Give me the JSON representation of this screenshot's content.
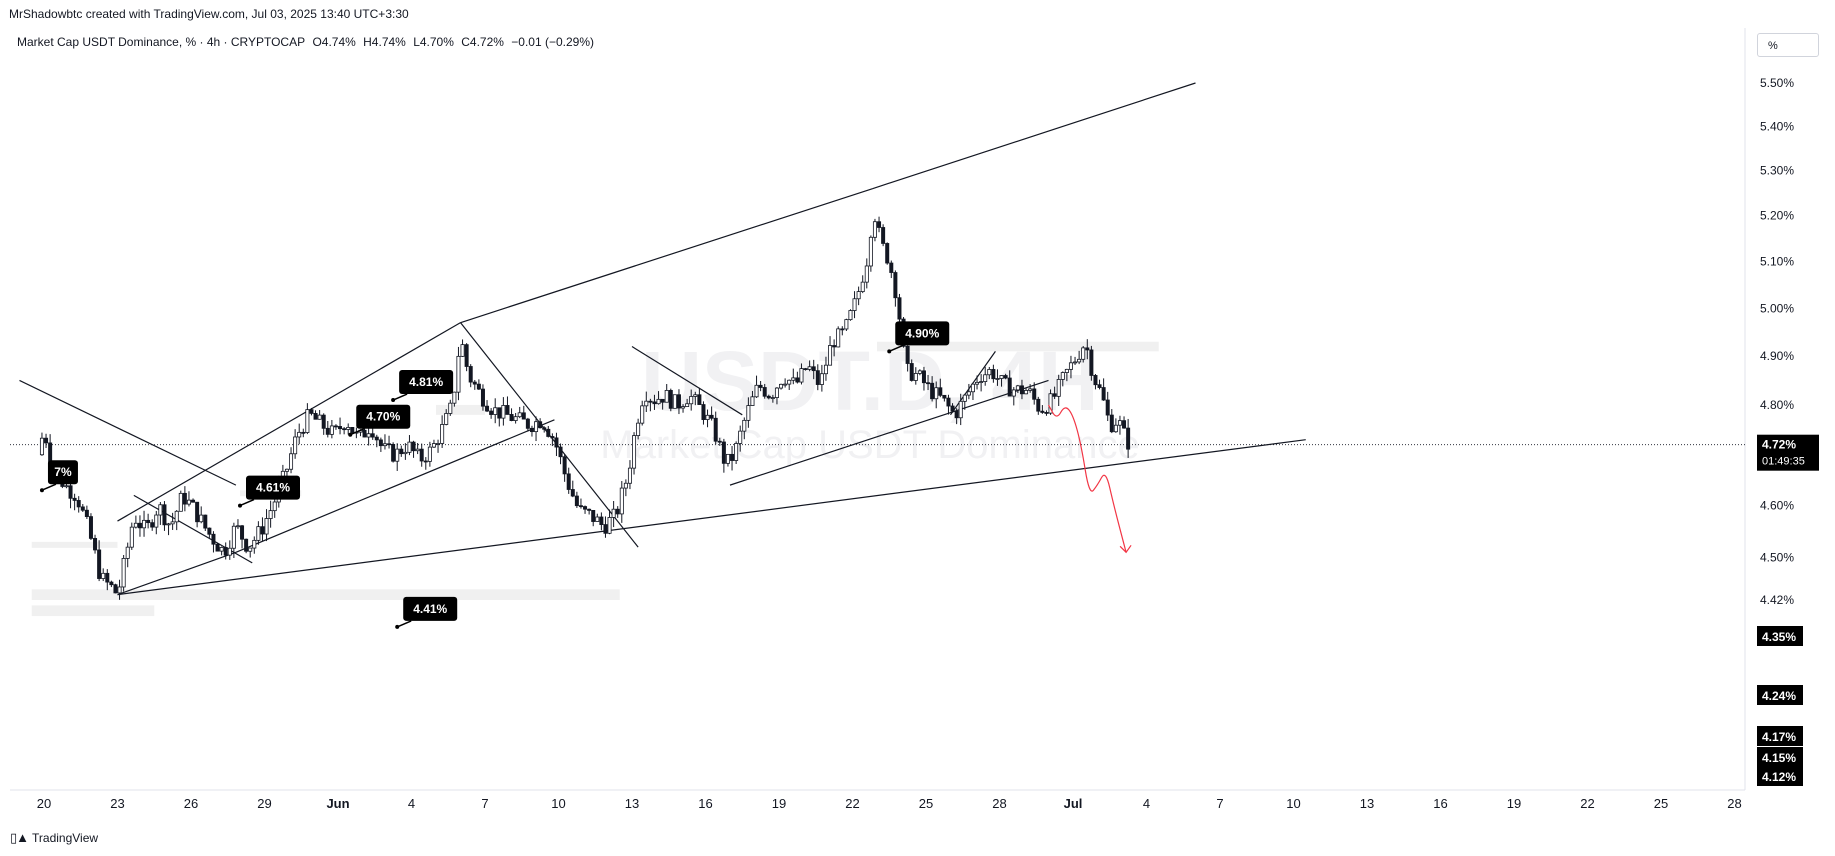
{
  "header": {
    "created_by": "MrShadowbtc created with TradingView.com, Jul 03, 2025 13:40 UTC+3:30"
  },
  "legend": {
    "symbol": "Market Cap USDT Dominance, % · 4h · CRYPTOCAP",
    "open": "O4.74%",
    "high": "H4.74%",
    "low": "L4.70%",
    "close": "C4.72%",
    "change": "−0.01 (−0.29%)"
  },
  "scale_unit": "%",
  "watermark": {
    "symbol": "USDT.D, 4H",
    "name": "Market Cap USDT Dominance"
  },
  "footer": {
    "brand": "TradingView"
  },
  "colors": {
    "candle": "#131722",
    "projection": "#f23645",
    "zone": "#f0f0f0",
    "badge_bg": "#000000"
  },
  "chart_data": {
    "type": "candlestick",
    "timeframe": "4h",
    "ylim": [
      4.1,
      5.55
    ],
    "y_scale": "log",
    "yticks": [
      "5.50%",
      "5.40%",
      "5.30%",
      "5.20%",
      "5.10%",
      "5.00%",
      "4.90%",
      "4.80%",
      "4.60%",
      "4.50%",
      "4.42%"
    ],
    "xticks": [
      {
        "label": "20",
        "date": "2025-05-20"
      },
      {
        "label": "23",
        "date": "2025-05-23"
      },
      {
        "label": "26",
        "date": "2025-05-26"
      },
      {
        "label": "29",
        "date": "2025-05-29"
      },
      {
        "label": "Jun",
        "date": "2025-06-01"
      },
      {
        "label": "4",
        "date": "2025-06-04"
      },
      {
        "label": "7",
        "date": "2025-06-07"
      },
      {
        "label": "10",
        "date": "2025-06-10"
      },
      {
        "label": "13",
        "date": "2025-06-13"
      },
      {
        "label": "16",
        "date": "2025-06-16"
      },
      {
        "label": "19",
        "date": "2025-06-19"
      },
      {
        "label": "22",
        "date": "2025-06-22"
      },
      {
        "label": "25",
        "date": "2025-06-25"
      },
      {
        "label": "28",
        "date": "2025-06-28"
      },
      {
        "label": "Jul",
        "date": "2025-07-01"
      },
      {
        "label": "4",
        "date": "2025-07-04"
      },
      {
        "label": "7",
        "date": "2025-07-07"
      },
      {
        "label": "10",
        "date": "2025-07-10"
      },
      {
        "label": "13",
        "date": "2025-07-13"
      },
      {
        "label": "16",
        "date": "2025-07-16"
      },
      {
        "label": "19",
        "date": "2025-07-19"
      },
      {
        "label": "22",
        "date": "2025-07-22"
      },
      {
        "label": "25",
        "date": "2025-07-25"
      },
      {
        "label": "28",
        "date": "2025-07-28"
      }
    ],
    "price_path": [
      [
        "2025-05-19 18:00",
        4.7
      ],
      [
        "2025-05-20 00:00",
        4.75
      ],
      [
        "2025-05-20 08:00",
        4.68
      ],
      [
        "2025-05-20 20:00",
        4.64
      ],
      [
        "2025-05-21 08:00",
        4.62
      ],
      [
        "2025-05-21 20:00",
        4.55
      ],
      [
        "2025-05-22 08:00",
        4.46
      ],
      [
        "2025-05-22 20:00",
        4.44
      ],
      [
        "2025-05-23 00:00",
        4.43
      ],
      [
        "2025-05-23 08:00",
        4.5
      ],
      [
        "2025-05-23 16:00",
        4.58
      ],
      [
        "2025-05-24 04:00",
        4.55
      ],
      [
        "2025-05-24 16:00",
        4.6
      ],
      [
        "2025-05-25 04:00",
        4.56
      ],
      [
        "2025-05-25 16:00",
        4.62
      ],
      [
        "2025-05-26 04:00",
        4.59
      ],
      [
        "2025-05-26 16:00",
        4.55
      ],
      [
        "2025-05-27 08:00",
        4.51
      ],
      [
        "2025-05-27 20:00",
        4.56
      ],
      [
        "2025-05-28 08:00",
        4.52
      ],
      [
        "2025-05-28 20:00",
        4.55
      ],
      [
        "2025-05-29 08:00",
        4.6
      ],
      [
        "2025-05-29 20:00",
        4.66
      ],
      [
        "2025-05-30 08:00",
        4.74
      ],
      [
        "2025-05-30 20:00",
        4.78
      ],
      [
        "2025-05-31 08:00",
        4.76
      ],
      [
        "2025-05-31 20:00",
        4.74
      ],
      [
        "2025-06-01 08:00",
        4.77
      ],
      [
        "2025-06-01 20:00",
        4.73
      ],
      [
        "2025-06-02 08:00",
        4.76
      ],
      [
        "2025-06-02 20:00",
        4.71
      ],
      [
        "2025-06-03 08:00",
        4.7
      ],
      [
        "2025-06-03 20:00",
        4.72
      ],
      [
        "2025-06-04 08:00",
        4.69
      ],
      [
        "2025-06-04 20:00",
        4.71
      ],
      [
        "2025-06-05 08:00",
        4.76
      ],
      [
        "2025-06-05 16:00",
        4.8
      ],
      [
        "2025-06-06 00:00",
        4.94
      ],
      [
        "2025-06-06 08:00",
        4.86
      ],
      [
        "2025-06-06 20:00",
        4.82
      ],
      [
        "2025-06-07 08:00",
        4.79
      ],
      [
        "2025-06-07 20:00",
        4.78
      ],
      [
        "2025-06-08 08:00",
        4.77
      ],
      [
        "2025-06-08 20:00",
        4.76
      ],
      [
        "2025-06-09 08:00",
        4.77
      ],
      [
        "2025-06-09 20:00",
        4.73
      ],
      [
        "2025-06-10 08:00",
        4.65
      ],
      [
        "2025-06-10 20:00",
        4.59
      ],
      [
        "2025-06-11 08:00",
        4.58
      ],
      [
        "2025-06-11 20:00",
        4.56
      ],
      [
        "2025-06-12 08:00",
        4.58
      ],
      [
        "2025-06-12 20:00",
        4.66
      ],
      [
        "2025-06-13 04:00",
        4.76
      ],
      [
        "2025-06-13 12:00",
        4.83
      ],
      [
        "2025-06-13 20:00",
        4.81
      ],
      [
        "2025-06-14 08:00",
        4.82
      ],
      [
        "2025-06-14 20:00",
        4.8
      ],
      [
        "2025-06-15 08:00",
        4.82
      ],
      [
        "2025-06-15 20:00",
        4.79
      ],
      [
        "2025-06-16 08:00",
        4.75
      ],
      [
        "2025-06-16 20:00",
        4.68
      ],
      [
        "2025-06-17 04:00",
        4.7
      ],
      [
        "2025-06-17 16:00",
        4.78
      ],
      [
        "2025-06-18 04:00",
        4.84
      ],
      [
        "2025-06-18 16:00",
        4.82
      ],
      [
        "2025-06-19 04:00",
        4.86
      ],
      [
        "2025-06-19 16:00",
        4.84
      ],
      [
        "2025-06-20 04:00",
        4.88
      ],
      [
        "2025-06-20 16:00",
        4.84
      ],
      [
        "2025-06-21 04:00",
        4.93
      ],
      [
        "2025-06-21 16:00",
        4.95
      ],
      [
        "2025-06-22 04:00",
        5.02
      ],
      [
        "2025-06-22 16:00",
        5.12
      ],
      [
        "2025-06-22 20:00",
        5.22
      ],
      [
        "2025-06-23 04:00",
        5.14
      ],
      [
        "2025-06-23 12:00",
        5.1
      ],
      [
        "2025-06-23 20:00",
        5.02
      ],
      [
        "2025-06-24 04:00",
        4.87
      ],
      [
        "2025-06-24 16:00",
        4.86
      ],
      [
        "2025-06-25 04:00",
        4.83
      ],
      [
        "2025-06-25 16:00",
        4.81
      ],
      [
        "2025-06-26 04:00",
        4.78
      ],
      [
        "2025-06-26 16:00",
        4.82
      ],
      [
        "2025-06-27 04:00",
        4.86
      ],
      [
        "2025-06-27 16:00",
        4.87
      ],
      [
        "2025-06-28 04:00",
        4.84
      ],
      [
        "2025-06-28 16:00",
        4.83
      ],
      [
        "2025-06-29 04:00",
        4.83
      ],
      [
        "2025-06-29 16:00",
        4.79
      ],
      [
        "2025-06-30 04:00",
        4.81
      ],
      [
        "2025-06-30 16:00",
        4.86
      ],
      [
        "2025-07-01 04:00",
        4.9
      ],
      [
        "2025-07-01 12:00",
        4.93
      ],
      [
        "2025-07-01 20:00",
        4.86
      ],
      [
        "2025-07-02 04:00",
        4.82
      ],
      [
        "2025-07-02 12:00",
        4.76
      ],
      [
        "2025-07-02 20:00",
        4.77
      ],
      [
        "2025-07-03 04:00",
        4.73
      ],
      [
        "2025-07-03 08:00",
        4.72
      ]
    ],
    "last_price": {
      "value": 4.72,
      "label": "4.72%",
      "countdown": "01:49:35"
    },
    "price_badges": [
      {
        "value": 4.35,
        "label": "4.35%"
      },
      {
        "value": 4.24,
        "label": "4.24%"
      },
      {
        "value": 4.17,
        "label": "4.17%"
      },
      {
        "value": 4.15,
        "label": "4.15%"
      },
      {
        "value": 4.12,
        "label": "4.12%"
      }
    ],
    "callouts": [
      {
        "date": "2025-05-19 22:00",
        "value": 4.63,
        "label": "7%"
      },
      {
        "date": "2025-05-28 00:00",
        "value": 4.6,
        "label": "4.61%"
      },
      {
        "date": "2025-06-03 10:00",
        "value": 4.37,
        "label": "4.41%"
      },
      {
        "date": "2025-06-01 12:00",
        "value": 4.74,
        "label": "4.70%"
      },
      {
        "date": "2025-06-03 06:00",
        "value": 4.81,
        "label": "4.81%"
      },
      {
        "date": "2025-06-23 12:00",
        "value": 4.91,
        "label": "4.90%"
      }
    ],
    "trendlines": [
      {
        "p1": [
          "2025-05-23 00:00",
          4.43
        ],
        "p2": [
          "2025-07-10 12:00",
          4.73
        ]
      },
      {
        "p1": [
          "2025-05-23 00:00",
          4.43
        ],
        "p2": [
          "2025-05-27 20:00",
          4.51
        ]
      },
      {
        "p1": [
          "2025-05-27 20:00",
          4.51
        ],
        "p2": [
          "2025-06-09 20:00",
          4.77
        ]
      },
      {
        "p1": [
          "2025-05-23 00:00",
          4.57
        ],
        "p2": [
          "2025-06-06 00:00",
          4.97
        ]
      },
      {
        "p1": [
          "2025-06-06 00:00",
          4.97
        ],
        "p2": [
          "2025-06-22 20:00",
          5.26
        ]
      },
      {
        "p1": [
          "2025-06-22 20:00",
          5.26
        ],
        "p2": [
          "2025-07-06 00:00",
          5.5
        ]
      },
      {
        "p1": [
          "2025-06-06 00:00",
          4.97
        ],
        "p2": [
          "2025-06-13 06:00",
          4.52
        ]
      },
      {
        "p1": [
          "2025-06-13 00:00",
          4.92
        ],
        "p2": [
          "2025-06-17 12:00",
          4.78
        ]
      },
      {
        "p1": [
          "2025-06-17 00:00",
          4.64
        ],
        "p2": [
          "2025-06-30 00:00",
          4.85
        ]
      },
      {
        "p1": [
          "2025-06-26 00:00",
          4.78
        ],
        "p2": [
          "2025-06-27 20:00",
          4.91
        ]
      },
      {
        "p1": [
          "2025-05-19 00:00",
          4.85
        ],
        "p2": [
          "2025-05-27 20:00",
          4.64
        ]
      },
      {
        "p1": [
          "2025-05-23 16:00",
          4.62
        ],
        "p2": [
          "2025-05-28 12:00",
          4.49
        ]
      }
    ],
    "projection": [
      [
        "2025-06-30 00:00",
        4.8
      ],
      [
        "2025-06-30 08:00",
        4.77
      ],
      [
        "2025-06-30 16:00",
        4.8
      ],
      [
        "2025-07-01 00:00",
        4.78
      ],
      [
        "2025-07-01 08:00",
        4.72
      ],
      [
        "2025-07-01 16:00",
        4.62
      ],
      [
        "2025-07-02 00:00",
        4.64
      ],
      [
        "2025-07-02 08:00",
        4.67
      ],
      [
        "2025-07-02 16:00",
        4.6
      ],
      [
        "2025-07-03 04:00",
        4.51
      ]
    ],
    "zones": [
      {
        "from": "2025-05-19 12:00",
        "to": "2025-05-24 12:00",
        "low": 4.39,
        "high": 4.41
      },
      {
        "from": "2025-05-19 12:00",
        "to": "2025-06-12 12:00",
        "low": 4.42,
        "high": 4.44
      },
      {
        "from": "2025-05-19 12:00",
        "to": "2025-05-23 00:00",
        "low": 4.52,
        "high": 4.53
      },
      {
        "from": "2025-06-05 00:00",
        "to": "2025-06-07 00:00",
        "low": 4.78,
        "high": 4.8
      },
      {
        "from": "2025-06-23 00:00",
        "to": "2025-07-04 12:00",
        "low": 4.91,
        "high": 4.93
      },
      {
        "from": "2025-05-28 00:00",
        "to": "2025-05-30 12:00",
        "low": 4.62,
        "high": 4.63
      }
    ]
  }
}
